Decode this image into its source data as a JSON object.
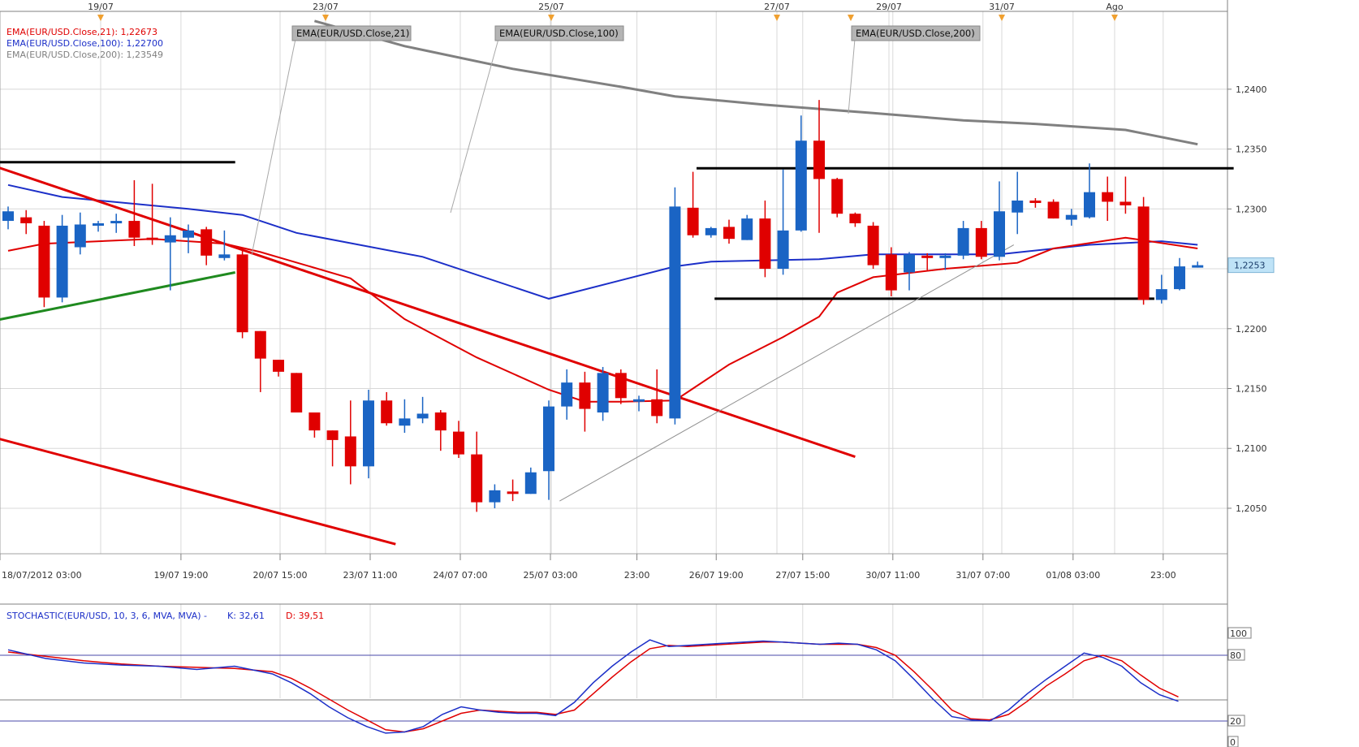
{
  "chart_data": {
    "type": "candlestick",
    "title": "",
    "colors": {
      "up_candle": "#1a64c4",
      "down_candle": "#e00000",
      "ema21": "#e00000",
      "ema100": "#1c2fc8",
      "ema200": "#808080",
      "grid": "#d8d8d8",
      "trend_red": "#e00000",
      "trend_green": "#1f8a1f",
      "trend_black": "#000000",
      "stoch_k": "#1c2fc8",
      "stoch_d": "#e00000",
      "event_marker": "#f0a030",
      "price_tag": "#bfe3f7"
    },
    "top_date_labels": [
      "19/07",
      "23/07",
      "25/07",
      "27/07",
      "29/07",
      "31/07",
      "Ago"
    ],
    "x_tick_labels": [
      "18/07/2012 03:00",
      "19/07 19:00",
      "20/07 15:00",
      "23/07 11:00",
      "24/07 07:00",
      "25/07 03:00",
      "23:00",
      "26/07 19:00",
      "27/07 15:00",
      "30/07 11:00",
      "31/07 07:00",
      "01/08 03:00",
      "23:00"
    ],
    "y_tick_labels": [
      "1,2400",
      "1,2350",
      "1,2300",
      "1,2250",
      "1,2200",
      "1,2150",
      "1,2100",
      "1,2050"
    ],
    "ylim": [
      1.2012,
      1.2465
    ],
    "current_price_label": "1,2253",
    "legend": [
      {
        "text": "EMA(EUR/USD.Close,21): 1,22673",
        "color": "#e00000"
      },
      {
        "text": "EMA(EUR/USD.Close,100): 1,22700",
        "color": "#1c2fc8"
      },
      {
        "text": "EMA(EUR/USD.Close,200): 1,23549",
        "color": "#808080"
      }
    ],
    "callouts": [
      "EMA(EUR/USD.Close,21)",
      "EMA(EUR/USD.Close,100)",
      "EMA(EUR/USD.Close,200)"
    ],
    "candles": [
      {
        "o": 1.229,
        "h": 1.2302,
        "l": 1.2283,
        "c": 1.2298
      },
      {
        "o": 1.2293,
        "h": 1.2299,
        "l": 1.2279,
        "c": 1.2288
      },
      {
        "o": 1.2286,
        "h": 1.229,
        "l": 1.2218,
        "c": 1.2226
      },
      {
        "o": 1.2226,
        "h": 1.2295,
        "l": 1.2222,
        "c": 1.2286
      },
      {
        "o": 1.2268,
        "h": 1.2297,
        "l": 1.2262,
        "c": 1.2287
      },
      {
        "o": 1.2286,
        "h": 1.229,
        "l": 1.2281,
        "c": 1.2288
      },
      {
        "o": 1.2288,
        "h": 1.2296,
        "l": 1.228,
        "c": 1.229
      },
      {
        "o": 1.229,
        "h": 1.2324,
        "l": 1.2269,
        "c": 1.2276
      },
      {
        "o": 1.2276,
        "h": 1.2321,
        "l": 1.227,
        "c": 1.2274
      },
      {
        "o": 1.2272,
        "h": 1.2293,
        "l": 1.2232,
        "c": 1.2278
      },
      {
        "o": 1.2276,
        "h": 1.2287,
        "l": 1.2263,
        "c": 1.2282
      },
      {
        "o": 1.2283,
        "h": 1.2285,
        "l": 1.2253,
        "c": 1.2261
      },
      {
        "o": 1.2259,
        "h": 1.2282,
        "l": 1.2257,
        "c": 1.2262
      },
      {
        "o": 1.2262,
        "h": 1.2267,
        "l": 1.2192,
        "c": 1.2197
      },
      {
        "o": 1.2198,
        "h": 1.2198,
        "l": 1.2147,
        "c": 1.2175
      },
      {
        "o": 1.2174,
        "h": 1.2174,
        "l": 1.216,
        "c": 1.2164
      },
      {
        "o": 1.2163,
        "h": 1.2163,
        "l": 1.213,
        "c": 1.213
      },
      {
        "o": 1.213,
        "h": 1.213,
        "l": 1.2109,
        "c": 1.2115
      },
      {
        "o": 1.2115,
        "h": 1.2115,
        "l": 1.2085,
        "c": 1.2107
      },
      {
        "o": 1.211,
        "h": 1.214,
        "l": 1.207,
        "c": 1.2085
      },
      {
        "o": 1.2085,
        "h": 1.2149,
        "l": 1.2075,
        "c": 1.214
      },
      {
        "o": 1.214,
        "h": 1.2147,
        "l": 1.2119,
        "c": 1.2121
      },
      {
        "o": 1.2119,
        "h": 1.2141,
        "l": 1.2113,
        "c": 1.2125
      },
      {
        "o": 1.2125,
        "h": 1.2143,
        "l": 1.2121,
        "c": 1.2129
      },
      {
        "o": 1.213,
        "h": 1.2132,
        "l": 1.2098,
        "c": 1.2115
      },
      {
        "o": 1.2114,
        "h": 1.2123,
        "l": 1.2092,
        "c": 1.2095
      },
      {
        "o": 1.2095,
        "h": 1.2114,
        "l": 1.2047,
        "c": 1.2055
      },
      {
        "o": 1.2055,
        "h": 1.207,
        "l": 1.205,
        "c": 1.2065
      },
      {
        "o": 1.2064,
        "h": 1.2074,
        "l": 1.2056,
        "c": 1.2062
      },
      {
        "o": 1.2062,
        "h": 1.2084,
        "l": 1.2062,
        "c": 1.208
      },
      {
        "o": 1.2081,
        "h": 1.214,
        "l": 1.2057,
        "c": 1.2135
      },
      {
        "o": 1.2135,
        "h": 1.2166,
        "l": 1.2124,
        "c": 1.2155
      },
      {
        "o": 1.2155,
        "h": 1.2164,
        "l": 1.2114,
        "c": 1.2133
      },
      {
        "o": 1.213,
        "h": 1.2168,
        "l": 1.2123,
        "c": 1.2163
      },
      {
        "o": 1.2163,
        "h": 1.2166,
        "l": 1.2137,
        "c": 1.2142
      },
      {
        "o": 1.2139,
        "h": 1.2144,
        "l": 1.2131,
        "c": 1.2141
      },
      {
        "o": 1.2141,
        "h": 1.2166,
        "l": 1.2121,
        "c": 1.2127
      },
      {
        "o": 1.2125,
        "h": 1.2318,
        "l": 1.212,
        "c": 1.2302
      },
      {
        "o": 1.2301,
        "h": 1.2331,
        "l": 1.2276,
        "c": 1.2278
      },
      {
        "o": 1.2278,
        "h": 1.2285,
        "l": 1.2276,
        "c": 1.2284
      },
      {
        "o": 1.2285,
        "h": 1.2291,
        "l": 1.2271,
        "c": 1.2275
      },
      {
        "o": 1.2274,
        "h": 1.2295,
        "l": 1.2274,
        "c": 1.2292
      },
      {
        "o": 1.2292,
        "h": 1.2307,
        "l": 1.2243,
        "c": 1.225
      },
      {
        "o": 1.225,
        "h": 1.2333,
        "l": 1.2245,
        "c": 1.2282
      },
      {
        "o": 1.2282,
        "h": 1.2378,
        "l": 1.2281,
        "c": 1.2357
      },
      {
        "o": 1.2357,
        "h": 1.2391,
        "l": 1.228,
        "c": 1.2325
      },
      {
        "o": 1.2325,
        "h": 1.2326,
        "l": 1.2293,
        "c": 1.2296
      },
      {
        "o": 1.2296,
        "h": 1.2297,
        "l": 1.2285,
        "c": 1.2288
      },
      {
        "o": 1.2286,
        "h": 1.2289,
        "l": 1.225,
        "c": 1.2253
      },
      {
        "o": 1.2262,
        "h": 1.2268,
        "l": 1.2227,
        "c": 1.2232
      },
      {
        "o": 1.2247,
        "h": 1.2264,
        "l": 1.2232,
        "c": 1.2262
      },
      {
        "o": 1.2261,
        "h": 1.2263,
        "l": 1.2249,
        "c": 1.226
      },
      {
        "o": 1.2259,
        "h": 1.2263,
        "l": 1.2249,
        "c": 1.2261
      },
      {
        "o": 1.2261,
        "h": 1.229,
        "l": 1.2258,
        "c": 1.2284
      },
      {
        "o": 1.2284,
        "h": 1.229,
        "l": 1.2258,
        "c": 1.226
      },
      {
        "o": 1.226,
        "h": 1.2323,
        "l": 1.2257,
        "c": 1.2298
      },
      {
        "o": 1.2297,
        "h": 1.2331,
        "l": 1.2279,
        "c": 1.2307
      },
      {
        "o": 1.2307,
        "h": 1.2309,
        "l": 1.2301,
        "c": 1.2306
      },
      {
        "o": 1.2306,
        "h": 1.2308,
        "l": 1.2292,
        "c": 1.2292
      },
      {
        "o": 1.2291,
        "h": 1.23,
        "l": 1.2286,
        "c": 1.2295
      },
      {
        "o": 1.2293,
        "h": 1.2338,
        "l": 1.2292,
        "c": 1.2314
      },
      {
        "o": 1.2314,
        "h": 1.2327,
        "l": 1.229,
        "c": 1.2306
      },
      {
        "o": 1.2306,
        "h": 1.2327,
        "l": 1.2296,
        "c": 1.2303
      },
      {
        "o": 1.2302,
        "h": 1.231,
        "l": 1.222,
        "c": 1.2224
      },
      {
        "o": 1.2224,
        "h": 1.2245,
        "l": 1.2221,
        "c": 1.2233
      },
      {
        "o": 1.2233,
        "h": 1.2259,
        "l": 1.2232,
        "c": 1.2252
      },
      {
        "o": 1.2252,
        "h": 1.2256,
        "l": 1.2251,
        "c": 1.2253
      }
    ],
    "ema21": [
      [
        0,
        1.2265
      ],
      [
        2,
        1.2271
      ],
      [
        8,
        1.2275
      ],
      [
        12,
        1.2271
      ],
      [
        14,
        1.2264
      ],
      [
        19,
        1.2242
      ],
      [
        22,
        1.2208
      ],
      [
        26,
        1.2176
      ],
      [
        30,
        1.2149
      ],
      [
        32,
        1.2139
      ],
      [
        34,
        1.2139
      ],
      [
        37,
        1.214
      ],
      [
        38,
        1.215
      ],
      [
        40,
        1.217
      ],
      [
        43,
        1.2193
      ],
      [
        45,
        1.221
      ],
      [
        46,
        1.223
      ],
      [
        48,
        1.2243
      ],
      [
        52,
        1.225
      ],
      [
        56,
        1.2255
      ],
      [
        58,
        1.2267
      ],
      [
        62,
        1.2276
      ],
      [
        66,
        1.2267
      ]
    ],
    "ema100": [
      [
        0,
        1.232
      ],
      [
        3,
        1.231
      ],
      [
        10,
        1.23
      ],
      [
        13,
        1.2295
      ],
      [
        16,
        1.228
      ],
      [
        23,
        1.226
      ],
      [
        30,
        1.2225
      ],
      [
        37,
        1.2252
      ],
      [
        39,
        1.2256
      ],
      [
        45,
        1.2258
      ],
      [
        48,
        1.2262
      ],
      [
        55,
        1.2262
      ],
      [
        60,
        1.227
      ],
      [
        64,
        1.2273
      ],
      [
        66,
        1.227
      ]
    ],
    "ema200": [
      [
        17,
        1.2457
      ],
      [
        22,
        1.2436
      ],
      [
        28,
        1.2417
      ],
      [
        34,
        1.2402
      ],
      [
        37,
        1.2394
      ],
      [
        42,
        1.2387
      ],
      [
        48,
        1.238
      ],
      [
        53,
        1.2374
      ],
      [
        57,
        1.2371
      ],
      [
        62,
        1.2366
      ],
      [
        66,
        1.2354
      ]
    ],
    "trendlines": [
      {
        "color": "#e00000",
        "points": [
          [
            -1,
            1.2337
          ],
          [
            47,
            1.2093
          ]
        ]
      },
      {
        "color": "#e00000",
        "points": [
          [
            -1,
            1.211
          ],
          [
            21.5,
            1.202
          ]
        ]
      },
      {
        "color": "#1f8a1f",
        "points": [
          [
            -1,
            1.2206
          ],
          [
            12.6,
            1.2247
          ]
        ]
      },
      {
        "color": "#000000",
        "points": [
          [
            -1,
            1.2339
          ],
          [
            12.6,
            1.2339
          ]
        ]
      },
      {
        "color": "#000000",
        "points": [
          [
            38.2,
            1.2334
          ],
          [
            68,
            1.2334
          ]
        ]
      },
      {
        "color": "#000000",
        "points": [
          [
            39.2,
            1.2225
          ],
          [
            63.6,
            1.2225
          ]
        ]
      }
    ],
    "stochastic": {
      "label": "STOCHASTIC(EUR/USD, 10, 3, 6, MVA, MVA) -",
      "k_label": "K: 32,61",
      "d_label": "D: 39,51",
      "levels": [
        "100",
        "80",
        "20",
        "0"
      ],
      "k": [
        [
          0,
          85
        ],
        [
          2,
          77
        ],
        [
          4,
          73
        ],
        [
          6,
          71
        ],
        [
          8,
          70
        ],
        [
          10,
          67
        ],
        [
          12,
          70
        ],
        [
          14,
          63
        ],
        [
          15,
          55
        ],
        [
          16,
          45
        ],
        [
          17,
          33
        ],
        [
          18,
          23
        ],
        [
          19,
          15
        ],
        [
          20,
          9
        ],
        [
          21,
          10
        ],
        [
          22,
          15
        ],
        [
          23,
          26
        ],
        [
          24,
          33
        ],
        [
          25,
          30
        ],
        [
          26,
          28
        ],
        [
          27,
          27
        ],
        [
          28,
          27
        ],
        [
          29,
          25
        ],
        [
          30,
          37
        ],
        [
          31,
          55
        ],
        [
          32,
          70
        ],
        [
          33,
          83
        ],
        [
          34,
          94
        ],
        [
          35,
          88
        ],
        [
          36,
          89
        ],
        [
          37,
          90
        ],
        [
          38,
          91
        ],
        [
          39,
          92
        ],
        [
          40,
          93
        ],
        [
          41,
          92
        ],
        [
          42,
          91
        ],
        [
          43,
          90
        ],
        [
          44,
          91
        ],
        [
          45,
          90
        ],
        [
          46,
          85
        ],
        [
          47,
          75
        ],
        [
          48,
          58
        ],
        [
          49,
          40
        ],
        [
          50,
          24
        ],
        [
          51,
          21
        ],
        [
          52,
          20
        ],
        [
          53,
          30
        ],
        [
          54,
          45
        ],
        [
          55,
          58
        ],
        [
          56,
          70
        ],
        [
          57,
          82
        ],
        [
          58,
          78
        ],
        [
          59,
          70
        ],
        [
          60,
          55
        ],
        [
          61,
          44
        ],
        [
          62,
          38
        ]
      ],
      "d": [
        [
          0,
          83
        ],
        [
          2,
          79
        ],
        [
          4,
          75
        ],
        [
          6,
          72
        ],
        [
          8,
          70
        ],
        [
          10,
          69
        ],
        [
          12,
          68
        ],
        [
          14,
          65
        ],
        [
          15,
          59
        ],
        [
          16,
          50
        ],
        [
          17,
          40
        ],
        [
          18,
          30
        ],
        [
          19,
          21
        ],
        [
          20,
          12
        ],
        [
          21,
          10
        ],
        [
          22,
          13
        ],
        [
          23,
          20
        ],
        [
          24,
          27
        ],
        [
          25,
          30
        ],
        [
          26,
          29
        ],
        [
          27,
          28
        ],
        [
          28,
          28
        ],
        [
          29,
          26
        ],
        [
          30,
          30
        ],
        [
          31,
          45
        ],
        [
          32,
          60
        ],
        [
          33,
          74
        ],
        [
          34,
          86
        ],
        [
          35,
          89
        ],
        [
          36,
          88
        ],
        [
          37,
          89
        ],
        [
          38,
          90
        ],
        [
          39,
          91
        ],
        [
          40,
          92
        ],
        [
          41,
          92
        ],
        [
          42,
          91
        ],
        [
          43,
          90
        ],
        [
          44,
          90
        ],
        [
          45,
          90
        ],
        [
          46,
          87
        ],
        [
          47,
          80
        ],
        [
          48,
          65
        ],
        [
          49,
          48
        ],
        [
          50,
          30
        ],
        [
          51,
          22
        ],
        [
          52,
          21
        ],
        [
          53,
          26
        ],
        [
          54,
          38
        ],
        [
          55,
          52
        ],
        [
          56,
          63
        ],
        [
          57,
          75
        ],
        [
          58,
          80
        ],
        [
          59,
          75
        ],
        [
          60,
          62
        ],
        [
          61,
          50
        ],
        [
          62,
          42
        ]
      ]
    }
  }
}
